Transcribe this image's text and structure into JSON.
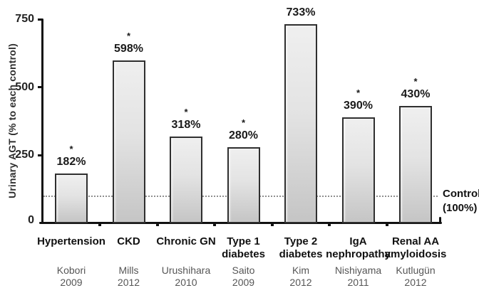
{
  "chart_data": {
    "type": "bar",
    "title": "",
    "xlabel": "",
    "ylabel": "Urinary AGT (% to each control)",
    "ylim": [
      0,
      750
    ],
    "yticks": [
      "0",
      "250",
      "500",
      "750"
    ],
    "grid": false,
    "legend": "none",
    "bar_fill_top": "#efefef",
    "bar_fill_bottom": "#c5c5c5",
    "bar_border_color": "#2f2f2f",
    "axis_color": "#111111",
    "control_line_color": "#8f8f8f",
    "source_text_color": "#565656",
    "categories": [
      "Hypertension",
      "CKD",
      "Chronic GN",
      "Type 1 diabetes",
      "Type 2 diabetes",
      "IgA nephropathy",
      "Renal AA amyloidosis"
    ],
    "values": [
      182,
      598,
      318,
      280,
      733,
      390,
      430
    ],
    "value_labels": [
      "182%",
      "598%",
      "318%",
      "280%",
      "733%",
      "390%",
      "430%"
    ],
    "significance_marks": [
      "*",
      "*",
      "*",
      "*",
      "*",
      "*",
      "*"
    ],
    "category_label_lines": [
      [
        "Hypertension"
      ],
      [
        "CKD"
      ],
      [
        "Chronic GN"
      ],
      [
        "Type 1",
        "diabetes"
      ],
      [
        "Type 2",
        "diabetes"
      ],
      [
        "IgA",
        "nephropathy"
      ],
      [
        "Renal AA",
        "amyloidosis"
      ]
    ],
    "source_labels": [
      [
        "Kobori",
        "2009"
      ],
      [
        "Mills",
        "2012"
      ],
      [
        "Urushihara",
        "2010"
      ],
      [
        "Saito",
        "2009"
      ],
      [
        "Kim",
        "2012"
      ],
      [
        "Nishiyama",
        "2011"
      ],
      [
        "Kutlugün",
        "2012"
      ]
    ],
    "control_line": {
      "value": 100,
      "style": "dotted",
      "label_lines": [
        "Control",
        "(100%)"
      ]
    }
  }
}
